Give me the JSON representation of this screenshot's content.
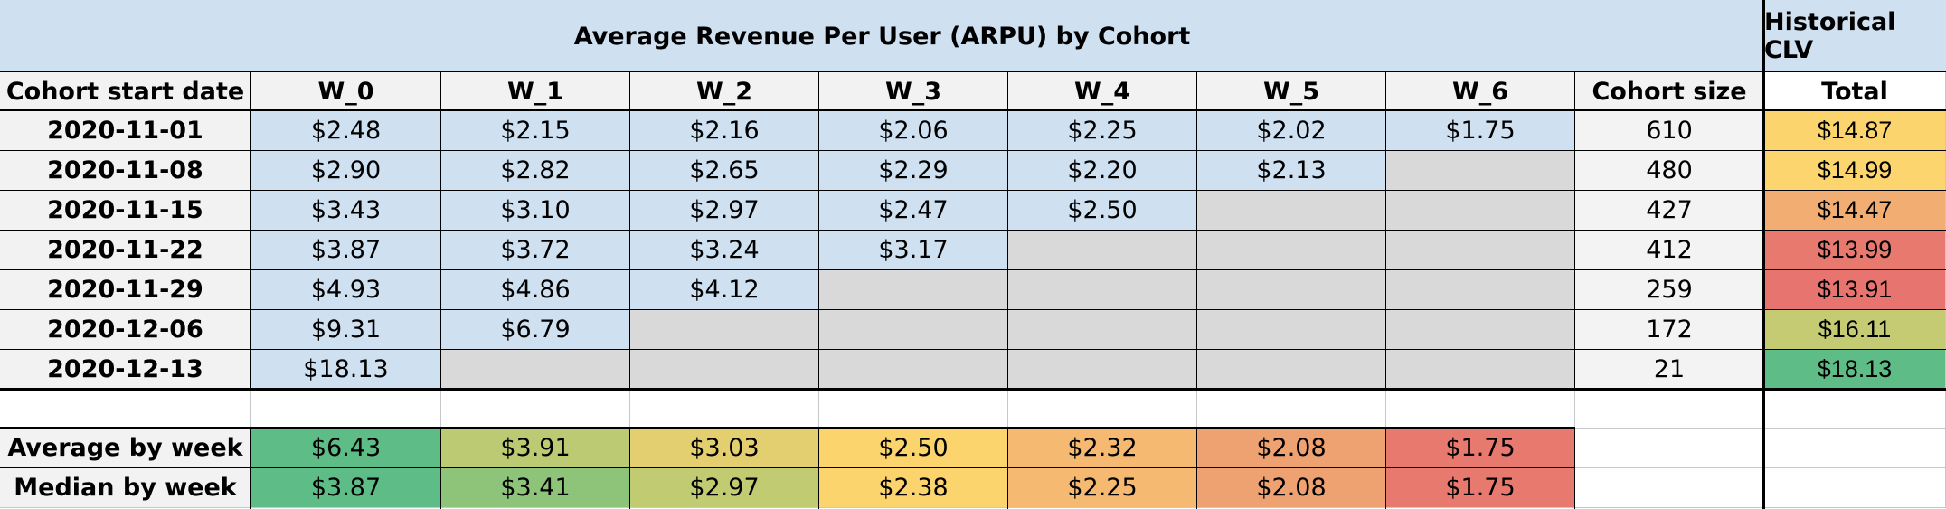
{
  "title": "Average Revenue Per User (ARPU) by Cohort",
  "clv_title": "Historical CLV",
  "headers": {
    "cohort_start": "Cohort start date",
    "weeks": [
      "W_0",
      "W_1",
      "W_2",
      "W_3",
      "W_4",
      "W_5",
      "W_6"
    ],
    "cohort_size": "Cohort size",
    "total": "Total"
  },
  "rows": [
    {
      "date": "2020-11-01",
      "values": [
        "$2.48",
        "$2.15",
        "$2.16",
        "$2.06",
        "$2.25",
        "$2.02",
        "$1.75"
      ],
      "size": "610",
      "total": "$14.87",
      "total_color": "#fcd46d"
    },
    {
      "date": "2020-11-08",
      "values": [
        "$2.90",
        "$2.82",
        "$2.65",
        "$2.29",
        "$2.20",
        "$2.13",
        ""
      ],
      "size": "480",
      "total": "$14.99",
      "total_color": "#fcd56f"
    },
    {
      "date": "2020-11-15",
      "values": [
        "$3.43",
        "$3.10",
        "$2.97",
        "$2.47",
        "$2.50",
        "",
        ""
      ],
      "size": "427",
      "total": "$14.47",
      "total_color": "#f2ad73"
    },
    {
      "date": "2020-11-22",
      "values": [
        "$3.87",
        "$3.72",
        "$3.24",
        "$3.17",
        "",
        "",
        ""
      ],
      "size": "412",
      "total": "$13.99",
      "total_color": "#e8796f"
    },
    {
      "date": "2020-11-29",
      "values": [
        "$4.93",
        "$4.86",
        "$4.12",
        "",
        "",
        "",
        ""
      ],
      "size": "259",
      "total": "$13.91",
      "total_color": "#e7746e"
    },
    {
      "date": "2020-12-06",
      "values": [
        "$9.31",
        "$6.79",
        "",
        "",
        "",
        "",
        ""
      ],
      "size": "172",
      "total": "$16.11",
      "total_color": "#c4cb72"
    },
    {
      "date": "2020-12-13",
      "values": [
        "$18.13",
        "",
        "",
        "",
        "",
        "",
        ""
      ],
      "size": "21",
      "total": "$18.13",
      "total_color": "#5ebc86"
    }
  ],
  "summary": [
    {
      "label": "Average by week",
      "values": [
        "$6.43",
        "$3.91",
        "$3.03",
        "$2.50",
        "$2.32",
        "$2.08",
        "$1.75"
      ],
      "colors": [
        "#5ebc86",
        "#bcca73",
        "#e4cf70",
        "#fcd46d",
        "#f5b971",
        "#efa271",
        "#e8796f"
      ]
    },
    {
      "label": "Median by week",
      "values": [
        "$3.87",
        "$3.41",
        "$2.97",
        "$2.38",
        "$2.25",
        "$2.08",
        "$1.75"
      ],
      "colors": [
        "#5ebc86",
        "#8ec47a",
        "#c1cb72",
        "#fcd46d",
        "#f5b971",
        "#efa271",
        "#e8796f"
      ]
    }
  ],
  "colors": {
    "title_bg": "#cfe0f1",
    "header_bg": "#f2f2f2",
    "value_bg": "#cfe0f1",
    "empty_bg": "#d9d9d9",
    "label_bg": "#f2f2f2"
  }
}
